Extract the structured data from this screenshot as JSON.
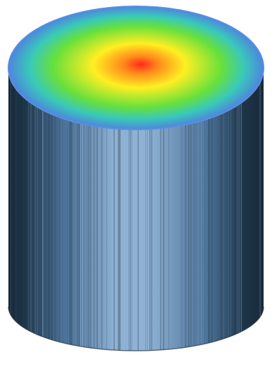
{
  "figure": {
    "shape": "cylinder",
    "colors": {
      "background": "#ffffff",
      "top_rim": "#5b8fe0",
      "heatmap_center": "#ff2a1a",
      "heatmap_orange": "#ff8a1c",
      "heatmap_yellow": "#ffef22",
      "heatmap_green": "#67e03c",
      "heatmap_cyan": "#39c9b9",
      "heatmap_edge": "#4d86dd",
      "side_dark": "#1e3548",
      "side_mid": "#4d7298",
      "side_light": "#8fb2d4",
      "side_deep": "#18293a"
    }
  }
}
